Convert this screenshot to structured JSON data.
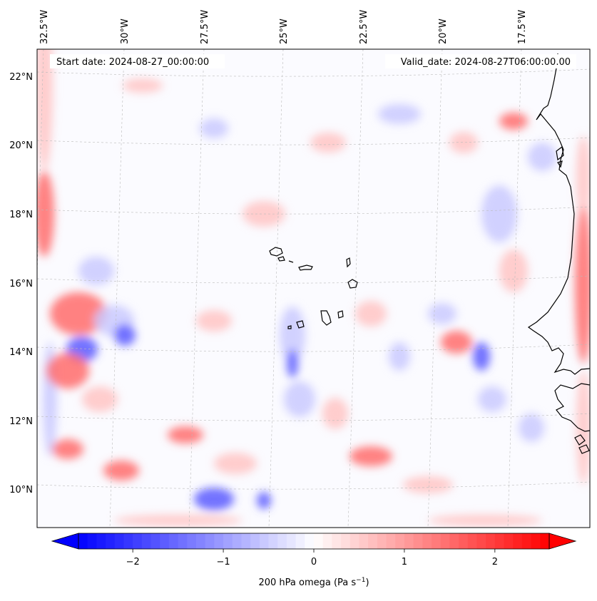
{
  "header": {
    "start_label": "Start date: 2024-08-27_00:00:00",
    "valid_label": "Valid_date: 2024-08-27T06:00:00.00"
  },
  "map": {
    "region": "Cape Verde / West African coast",
    "longitude_labels": [
      "32.5°W",
      "30°W",
      "27.5°W",
      "25°W",
      "22.5°W",
      "20°W",
      "17.5°W"
    ],
    "latitude_labels": [
      "22°N",
      "20°N",
      "18°N",
      "16°N",
      "14°N",
      "12°N",
      "10°N"
    ],
    "gridlines": "dashed",
    "coastline_color": "#000000"
  },
  "colorbar": {
    "ticks": [
      "−2",
      "−1",
      "0",
      "1",
      "2"
    ],
    "label_text": "200 hPa omega (Pa s",
    "label_sup": "−1",
    "label_close": ")",
    "range": [
      -2.6,
      2.6
    ],
    "colors": {
      "negative": "#0000ff",
      "zero": "#ffffff",
      "positive": "#ff0000"
    },
    "extend": "both"
  },
  "chart_data": {
    "type": "heatmap",
    "variable": "200 hPa omega",
    "units": "Pa s^-1",
    "lon_range": [
      -33.0,
      -15.7
    ],
    "lat_range": [
      9.0,
      22.8
    ],
    "scale": "diverging blue-white-red",
    "vmin": -2.6,
    "vmax": 2.6
  }
}
